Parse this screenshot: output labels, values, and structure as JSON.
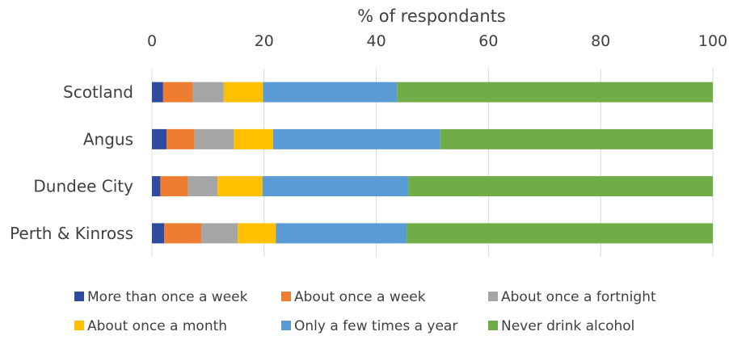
{
  "chart_data": {
    "type": "bar",
    "orientation": "horizontal",
    "stacked": true,
    "title": "",
    "xlabel": "% of respondants",
    "ylabel": "",
    "xlim": [
      0,
      100
    ],
    "x_ticks": [
      0,
      20,
      40,
      60,
      80,
      100
    ],
    "x_axis_position": "top",
    "grid": true,
    "legend_position": "bottom",
    "categories": [
      "Scotland",
      "Angus",
      "Dundee City",
      "Perth & Kinross"
    ],
    "series": [
      {
        "name": "More than once a week",
        "color": "#2F4B9E",
        "values": [
          2.0,
          2.6,
          1.5,
          2.2
        ]
      },
      {
        "name": "About once a week",
        "color": "#ED7D31",
        "values": [
          5.3,
          5.0,
          4.9,
          6.6
        ]
      },
      {
        "name": "About once a fortnight",
        "color": "#A5A5A5",
        "values": [
          5.5,
          7.0,
          5.3,
          6.5
        ]
      },
      {
        "name": "About once a month",
        "color": "#FFC000",
        "values": [
          7.0,
          7.0,
          8.0,
          6.8
        ]
      },
      {
        "name": "Only a few times a year",
        "color": "#5B9BD5",
        "values": [
          23.9,
          29.8,
          26.0,
          23.3
        ]
      },
      {
        "name": "Never drink alcohol",
        "color": "#70AD47",
        "values": [
          56.3,
          48.6,
          54.3,
          54.6
        ]
      }
    ]
  }
}
